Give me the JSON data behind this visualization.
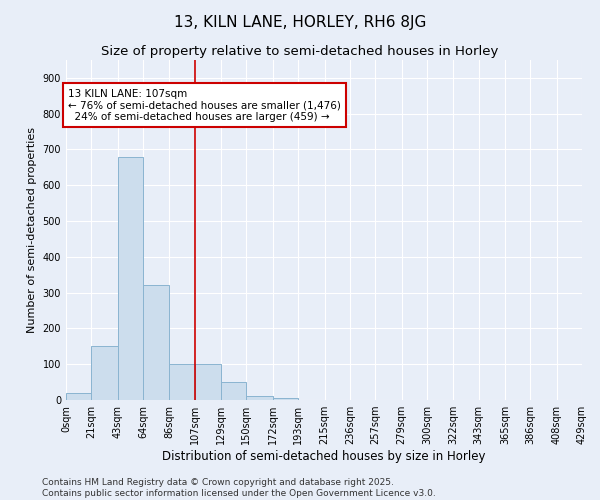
{
  "title": "13, KILN LANE, HORLEY, RH6 8JG",
  "subtitle": "Size of property relative to semi-detached houses in Horley",
  "xlabel": "Distribution of semi-detached houses by size in Horley",
  "ylabel": "Number of semi-detached properties",
  "bar_edges": [
    0,
    21,
    43,
    64,
    86,
    107,
    129,
    150,
    172,
    193,
    215,
    236,
    257,
    279,
    300,
    322,
    343,
    365,
    386,
    408,
    429
  ],
  "bar_heights": [
    20,
    150,
    680,
    320,
    100,
    100,
    50,
    10,
    5,
    0,
    0,
    0,
    0,
    0,
    0,
    0,
    0,
    0,
    0,
    0
  ],
  "bar_color": "#ccdded",
  "bar_edgecolor": "#8ab4d0",
  "red_line_x": 107,
  "annotation_text": "13 KILN LANE: 107sqm\n← 76% of semi-detached houses are smaller (1,476)\n  24% of semi-detached houses are larger (459) →",
  "annotation_box_color": "#ffffff",
  "annotation_box_edgecolor": "#cc0000",
  "annotation_fontsize": 7.5,
  "title_fontsize": 11,
  "subtitle_fontsize": 9.5,
  "xlabel_fontsize": 8.5,
  "ylabel_fontsize": 8,
  "tick_fontsize": 7,
  "ylim": [
    0,
    950
  ],
  "yticks": [
    0,
    100,
    200,
    300,
    400,
    500,
    600,
    700,
    800,
    900
  ],
  "background_color": "#e8eef8",
  "plot_background_color": "#e8eef8",
  "footer_text": "Contains HM Land Registry data © Crown copyright and database right 2025.\nContains public sector information licensed under the Open Government Licence v3.0.",
  "footer_fontsize": 6.5
}
